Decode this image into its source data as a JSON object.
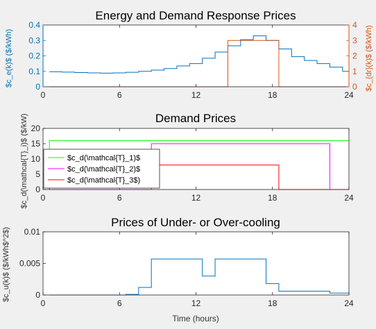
{
  "chart_data": [
    {
      "type": "line",
      "title": "Energy and Demand Response Prices",
      "xlabel": "",
      "ylabel_left": "$c_e(k)$ ($/kWh)",
      "ylabel_right": "$c_{dr}(k)$ ($/kWh)",
      "xlim": [
        0,
        24
      ],
      "ylim_left": [
        0,
        0.4
      ],
      "ylim_right": [
        0,
        4
      ],
      "xticks": [
        "0",
        "6",
        "12",
        "18",
        "24"
      ],
      "yticks_left": [
        "0",
        "0.1",
        "0.2",
        "0.3",
        "0.4"
      ],
      "yticks_right": [
        "0",
        "1",
        "2",
        "3",
        "4"
      ],
      "grid": false,
      "series": [
        {
          "axis": "left",
          "color": "#0072BD",
          "step": true,
          "x": [
            0.5,
            1.5,
            2.5,
            3.5,
            4.5,
            5.5,
            6.5,
            7.5,
            8.5,
            9.5,
            10.5,
            11.5,
            12.5,
            13.5,
            14.5,
            15.5,
            16.5,
            17.5,
            18.5,
            19.5,
            20.5,
            21.5,
            22.5,
            23.5,
            24
          ],
          "y": [
            0.097,
            0.095,
            0.092,
            0.09,
            0.088,
            0.09,
            0.094,
            0.1,
            0.108,
            0.118,
            0.135,
            0.15,
            0.185,
            0.225,
            0.265,
            0.305,
            0.33,
            0.3,
            0.245,
            0.195,
            0.17,
            0.15,
            0.127,
            0.1,
            0.1
          ]
        },
        {
          "axis": "right",
          "color": "#D95319",
          "step": true,
          "x": [
            0.5,
            14.5,
            14.5,
            18.5,
            18.5,
            24
          ],
          "y": [
            0,
            0,
            3,
            3,
            0,
            0
          ]
        }
      ]
    },
    {
      "type": "line",
      "title": "Demand Prices",
      "xlabel": "",
      "ylabel": "$c_d(\\mathcal{T}_i)$ ($/kW)",
      "xlim": [
        0,
        24
      ],
      "ylim": [
        0,
        20
      ],
      "xticks": [
        "0",
        "6",
        "12",
        "18",
        "24"
      ],
      "yticks": [
        "0",
        "5",
        "10",
        "15",
        "20"
      ],
      "grid": false,
      "legend": "bottom-left",
      "series": [
        {
          "name": "$c_d(\\mathcal{T}_1)$",
          "color": "#00FF00",
          "x": [
            0.5,
            0.5,
            24
          ],
          "y": [
            0,
            16,
            16
          ]
        },
        {
          "name": "$c_d(\\mathcal{T}_2)$",
          "color": "#FF00FF",
          "x": [
            0.5,
            8.5,
            8.5,
            22.5,
            22.5,
            24
          ],
          "y": [
            0,
            0,
            15,
            15,
            0,
            0
          ]
        },
        {
          "name": "$c_d(\\mathcal{T}_3$)",
          "color": "#FF0000",
          "x": [
            0.5,
            0.5,
            18.5,
            18.5,
            24
          ],
          "y": [
            0,
            8,
            8,
            0,
            0
          ]
        }
      ]
    },
    {
      "type": "line",
      "title": "Prices of Under- or Over-cooling",
      "xlabel": "Time (hours)",
      "ylabel": "$c_u(k)$ ($/kWh$^2$)",
      "xlim": [
        0,
        24
      ],
      "ylim": [
        0,
        0.01
      ],
      "xticks": [
        "0",
        "6",
        "12",
        "18",
        "24"
      ],
      "yticks": [
        "0",
        "0.005",
        "0.01"
      ],
      "grid": false,
      "series": [
        {
          "color": "#0072BD",
          "step": true,
          "x": [
            0.5,
            6.5,
            7.5,
            8.5,
            12.5,
            13.5,
            17.5,
            18.5,
            22.5,
            24
          ],
          "y": [
            0,
            0.0001,
            0.0012,
            0.0057,
            0.003,
            0.0057,
            0.0018,
            0.0006,
            0.0003,
            0.0003
          ]
        }
      ]
    }
  ]
}
